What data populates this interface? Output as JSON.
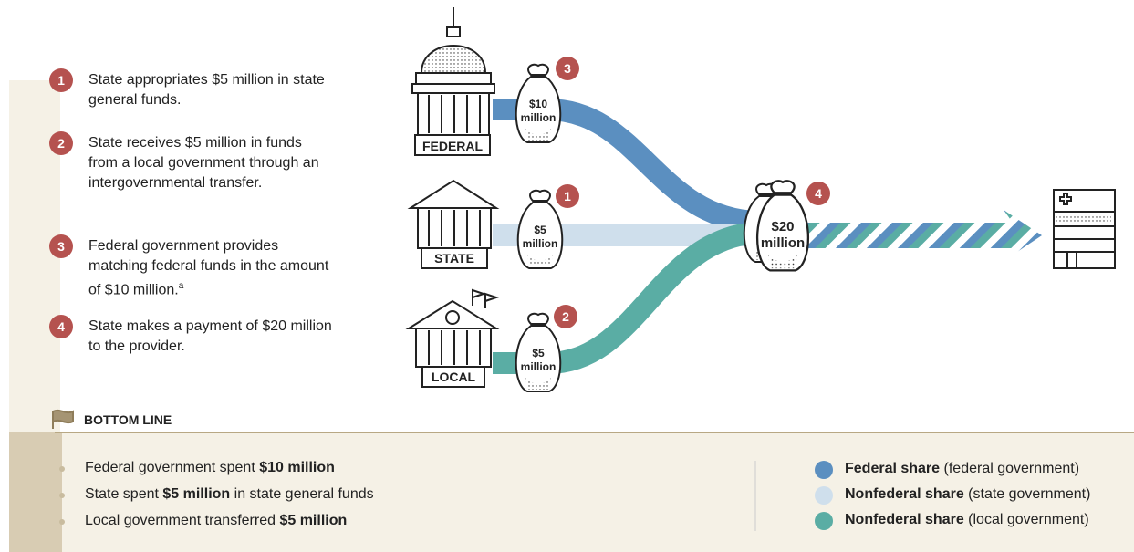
{
  "steps": [
    {
      "number": "1",
      "text": "State appropriates $5 million in state general funds."
    },
    {
      "number": "2",
      "text": "State receives $5 million in funds from a local government through an intergovernmental transfer."
    },
    {
      "number": "3",
      "text": "Federal government provides matching federal funds in the amount of $10 million.",
      "note": "a"
    },
    {
      "number": "4",
      "text": "State makes a payment of $20 million to the provider."
    }
  ],
  "buildings": [
    "FEDERAL",
    "STATE",
    "LOCAL"
  ],
  "bags": [
    {
      "step": "3",
      "amount": "$10",
      "unit": "million"
    },
    {
      "step": "1",
      "amount": "$5",
      "unit": "million"
    },
    {
      "step": "2",
      "amount": "$5",
      "unit": "million"
    },
    {
      "step": "4",
      "amount": "$20",
      "unit": "million"
    }
  ],
  "bottom_line": {
    "title": "BOTTOM LINE",
    "items": [
      [
        {
          "text": "Federal government spent "
        },
        {
          "text": "$10 million",
          "bold": true
        }
      ],
      [
        {
          "text": "State spent "
        },
        {
          "text": "$5 million",
          "bold": true
        },
        {
          "text": " in state general funds"
        }
      ],
      [
        {
          "text": "Local government transferred "
        },
        {
          "text": "$5 million",
          "bold": true
        }
      ]
    ]
  },
  "legend": [
    {
      "label": "Federal share",
      "detail": "(federal government)",
      "color": "#5b8fc0"
    },
    {
      "label": "Nonfederal share",
      "detail": "(state government)",
      "color": "#cfdfec"
    },
    {
      "label": "Nonfederal share",
      "detail": "(local government)",
      "color": "#5aada4"
    }
  ]
}
